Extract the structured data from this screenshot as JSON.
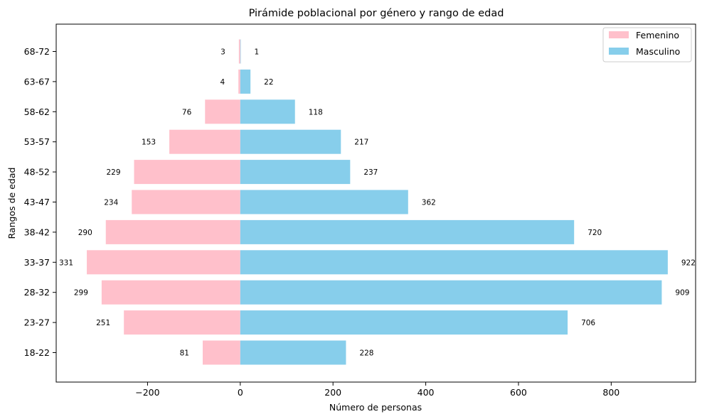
{
  "chart_data": {
    "type": "bar",
    "orientation": "horizontal",
    "title": "Pirámide poblacional por género y rango de edad",
    "xlabel": "Número de personas",
    "ylabel": "Rangos de edad",
    "categories": [
      "18-22",
      "23-27",
      "28-32",
      "33-37",
      "38-42",
      "43-47",
      "48-52",
      "53-57",
      "58-62",
      "63-67",
      "68-72"
    ],
    "series": [
      {
        "name": "Femenino",
        "values": [
          -81,
          -251,
          -299,
          -331,
          -290,
          -234,
          -229,
          -153,
          -76,
          -4,
          -3
        ],
        "labels": [
          "81",
          "251",
          "299",
          "331",
          "290",
          "234",
          "229",
          "153",
          "76",
          "4",
          "3"
        ],
        "color": "#ffc0cb"
      },
      {
        "name": "Masculino",
        "values": [
          228,
          706,
          909,
          922,
          720,
          362,
          237,
          217,
          118,
          22,
          1
        ],
        "labels": [
          "228",
          "706",
          "909",
          "922",
          "720",
          "362",
          "237",
          "217",
          "118",
          "22",
          "1"
        ],
        "color": "#87ceeb"
      }
    ],
    "xlim": [
      -397,
      982
    ],
    "xticks": [
      -200,
      0,
      200,
      400,
      600,
      800
    ],
    "xtick_labels": [
      "−200",
      "0",
      "200",
      "400",
      "600",
      "800"
    ],
    "grid": false,
    "legend_position": "top-right"
  }
}
